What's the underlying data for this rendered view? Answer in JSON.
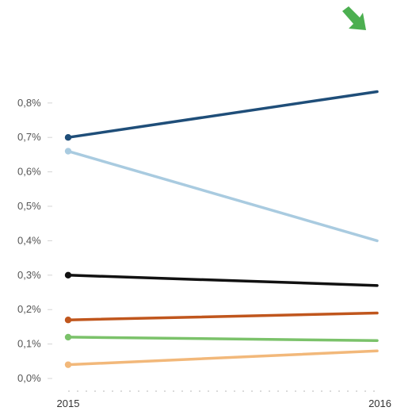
{
  "chart_data": {
    "type": "line",
    "title": "",
    "xlabel": "",
    "ylabel": "",
    "x": [
      "2015",
      "2016"
    ],
    "ylim": [
      0.0,
      0.85
    ],
    "yticks": [
      "0,0%",
      "0,1%",
      "0,2%",
      "0,3%",
      "0,4%",
      "0,5%",
      "0,6%",
      "0,7%",
      "0,8%"
    ],
    "grid": false,
    "legend": "none",
    "series": [
      {
        "color": "#1f4e79",
        "values": [
          0.7,
          0.833
        ]
      },
      {
        "color": "#a9cbe0",
        "values": [
          0.66,
          0.4
        ]
      },
      {
        "color": "#111111",
        "values": [
          0.3,
          0.27
        ]
      },
      {
        "color": "#c0561d",
        "values": [
          0.17,
          0.19
        ]
      },
      {
        "color": "#7bc26a",
        "values": [
          0.12,
          0.11
        ]
      },
      {
        "color": "#f2b87a",
        "values": [
          0.04,
          0.08
        ]
      }
    ],
    "indicator": {
      "icon": "arrow-down-right-icon",
      "color": "#4caf50"
    }
  }
}
